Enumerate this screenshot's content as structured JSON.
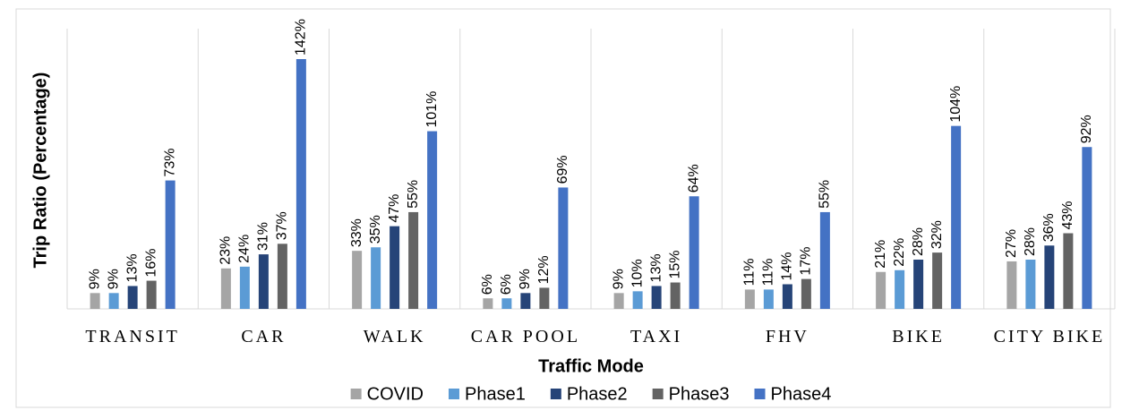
{
  "chart_data": {
    "type": "bar",
    "x_label": "Traffic Mode",
    "y_label": "Trip Ratio (Percentage)",
    "categories": [
      "TRANSIT",
      "CAR",
      "WALK",
      "CAR POOL",
      "TAXI",
      "FHV",
      "BIKE",
      "CITY BIKE"
    ],
    "series": [
      {
        "name": "COVID",
        "color": "#a5a5a5",
        "values": [
          9,
          23,
          33,
          6,
          9,
          11,
          21,
          27
        ],
        "value_labels": [
          "9%",
          "23%",
          "33%",
          "6%",
          "9%",
          "11%",
          "21%",
          "27%"
        ]
      },
      {
        "name": "Phase1",
        "color": "#5b9bd5",
        "values": [
          9,
          24,
          35,
          6,
          10,
          11,
          22,
          28
        ],
        "value_labels": [
          "9%",
          "24%",
          "35%",
          "6%",
          "10%",
          "11%",
          "22%",
          "28%"
        ]
      },
      {
        "name": "Phase2",
        "color": "#264478",
        "values": [
          13,
          31,
          47,
          9,
          13,
          14,
          28,
          36
        ],
        "value_labels": [
          "13%",
          "31%",
          "47%",
          "9%",
          "13%",
          "14%",
          "28%",
          "36%"
        ]
      },
      {
        "name": "Phase3",
        "color": "#636363",
        "values": [
          16,
          37,
          55,
          12,
          15,
          17,
          32,
          43
        ],
        "value_labels": [
          "16%",
          "37%",
          "55%",
          "12%",
          "15%",
          "17%",
          "32%",
          "43%"
        ]
      },
      {
        "name": "Phase4",
        "color": "#4472c4",
        "values": [
          73,
          142,
          101,
          69,
          64,
          55,
          104,
          92
        ],
        "value_labels": [
          "73%",
          "142%",
          "101%",
          "69%",
          "64%",
          "55%",
          "104%",
          "92%"
        ]
      }
    ]
  }
}
